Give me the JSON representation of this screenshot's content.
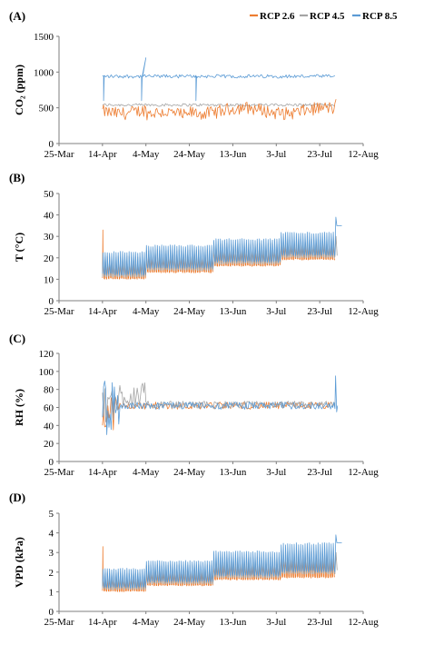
{
  "colors": {
    "rcp26": "#ED7D31",
    "rcp45": "#A5A5A5",
    "rcp85": "#5B9BD5"
  },
  "legend": [
    {
      "name": "RCP 2.6",
      "color": "#ED7D31"
    },
    {
      "name": "RCP 4.5",
      "color": "#A5A5A5"
    },
    {
      "name": "RCP 8.5",
      "color": "#5B9BD5"
    }
  ],
  "chart_data": [
    {
      "type": "line",
      "panel": "(A)",
      "ylabel": "CO₂ (ppm)",
      "ylim": [
        0,
        1500
      ],
      "yticks": [
        0,
        500,
        1000,
        1500
      ],
      "xticks": [
        "25-Mar",
        "14-Apr",
        "4-May",
        "24-May",
        "13-Jun",
        "3-Jul",
        "23-Jul",
        "12-Aug"
      ],
      "grid": false,
      "legend": "top-right",
      "series": [
        {
          "name": "RCP 2.6",
          "start": "14-Apr",
          "end": "30-Jul",
          "baseline": 460,
          "daily_min": 330,
          "daily_max": 520
        },
        {
          "name": "RCP 4.5",
          "start": "14-Apr",
          "end": "30-Jul",
          "baseline": 540,
          "daily_min": 500,
          "daily_max": 580
        },
        {
          "name": "RCP 8.5",
          "start": "14-Apr",
          "end": "30-Jul",
          "baseline": 940,
          "daily_min": 900,
          "daily_max": 980
        }
      ]
    },
    {
      "type": "line",
      "panel": "(B)",
      "ylabel": "T (°C)",
      "ylim": [
        0,
        50
      ],
      "yticks": [
        0,
        10,
        20,
        30,
        40,
        50
      ],
      "xticks": [
        "25-Mar",
        "14-Apr",
        "4-May",
        "24-May",
        "13-Jun",
        "3-Jul",
        "23-Jul",
        "12-Aug"
      ],
      "grid": false,
      "steps": [
        {
          "from": "14-Apr",
          "to": "4-May",
          "rcp26": [
            10,
            19
          ],
          "rcp45": [
            11,
            21
          ],
          "rcp85": [
            12,
            23
          ]
        },
        {
          "from": "4-May",
          "to": "4-Jun",
          "rcp26": [
            13,
            22
          ],
          "rcp45": [
            14,
            24
          ],
          "rcp85": [
            15,
            26
          ]
        },
        {
          "from": "4-Jun",
          "to": "5-Jul",
          "rcp26": [
            16,
            25
          ],
          "rcp45": [
            17,
            27
          ],
          "rcp85": [
            18,
            29
          ]
        },
        {
          "from": "5-Jul",
          "to": "30-Jul",
          "rcp26": [
            19,
            27
          ],
          "rcp45": [
            20,
            29
          ],
          "rcp85": [
            21,
            32
          ]
        }
      ]
    },
    {
      "type": "line",
      "panel": "(C)",
      "ylabel": "RH (%)",
      "ylim": [
        0,
        120
      ],
      "yticks": [
        0,
        20,
        40,
        60,
        80,
        100,
        120
      ],
      "xticks": [
        "25-Mar",
        "14-Apr",
        "4-May",
        "24-May",
        "13-Jun",
        "3-Jul",
        "23-Jul",
        "12-Aug"
      ],
      "grid": false,
      "series": [
        {
          "name": "RCP 2.6",
          "baseline": 62,
          "start_range": [
            35,
            75
          ]
        },
        {
          "name": "RCP 4.5",
          "baseline": 63,
          "start_range": [
            40,
            88
          ]
        },
        {
          "name": "RCP 8.5",
          "baseline": 62,
          "start_range": [
            28,
            90
          ]
        }
      ]
    },
    {
      "type": "line",
      "panel": "(D)",
      "ylabel": "VPD (kPa)",
      "ylim": [
        0,
        5
      ],
      "yticks": [
        0,
        1,
        2,
        3,
        4,
        5
      ],
      "xticks": [
        "25-Mar",
        "14-Apr",
        "4-May",
        "24-May",
        "13-Jun",
        "3-Jul",
        "23-Jul",
        "12-Aug"
      ],
      "grid": false,
      "steps": [
        {
          "from": "14-Apr",
          "to": "4-May",
          "rcp26": [
            1.0,
            1.8
          ],
          "rcp45": [
            1.1,
            2.0
          ],
          "rcp85": [
            1.2,
            2.2
          ]
        },
        {
          "from": "4-May",
          "to": "4-Jun",
          "rcp26": [
            1.3,
            2.1
          ],
          "rcp45": [
            1.4,
            2.4
          ],
          "rcp85": [
            1.5,
            2.6
          ]
        },
        {
          "from": "4-Jun",
          "to": "5-Jul",
          "rcp26": [
            1.6,
            2.5
          ],
          "rcp45": [
            1.7,
            2.8
          ],
          "rcp85": [
            1.8,
            3.1
          ]
        },
        {
          "from": "5-Jul",
          "to": "30-Jul",
          "rcp26": [
            1.7,
            2.8
          ],
          "rcp45": [
            1.9,
            3.1
          ],
          "rcp85": [
            2.0,
            3.5
          ]
        }
      ]
    }
  ]
}
